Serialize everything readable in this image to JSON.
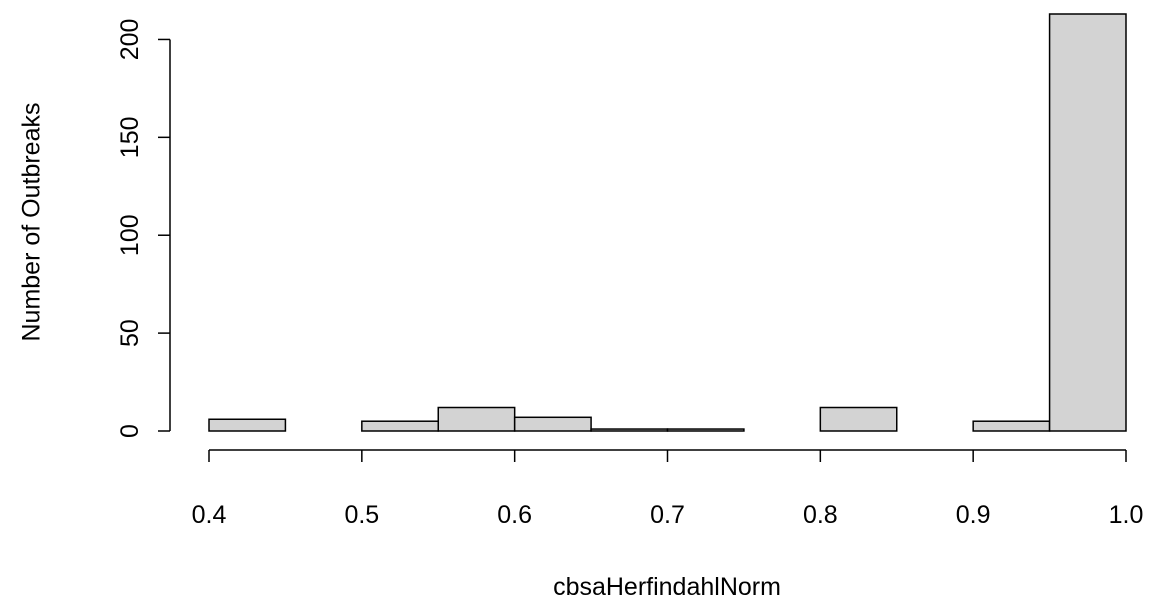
{
  "chart_data": {
    "type": "histogram",
    "x_label": "cbsaHerfindahlNorm",
    "y_label": "Number of Outbreaks",
    "bins": [
      0.4,
      0.45,
      0.5,
      0.55,
      0.6,
      0.65,
      0.7,
      0.75,
      0.8,
      0.85,
      0.9,
      0.95,
      1.0
    ],
    "values": [
      6,
      0,
      5,
      12,
      7,
      1,
      1,
      0,
      12,
      0,
      5,
      213
    ],
    "color": "#d3d3d3",
    "xlim": [
      0.4,
      1.0
    ],
    "xticks": [
      0.4,
      0.5,
      0.6,
      0.7,
      0.8,
      0.9,
      {
        "value": 1.0,
        "label": "1.0"
      }
    ],
    "ylim": [
      0,
      213
    ],
    "yticks": [
      0,
      50,
      100,
      150,
      200
    ]
  }
}
